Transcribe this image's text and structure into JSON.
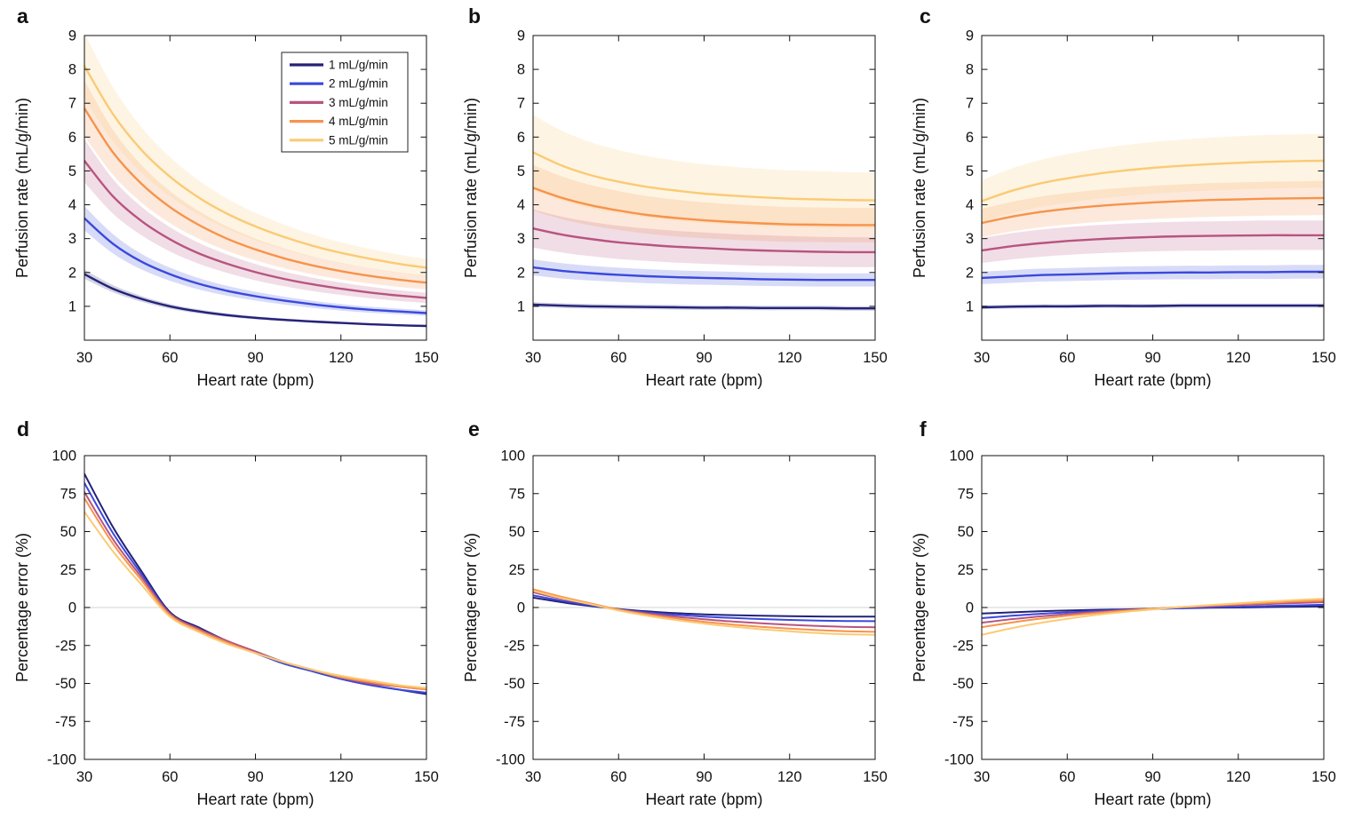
{
  "figure": {
    "background": "#ffffff",
    "xlabel": "Heart rate (bpm)",
    "ylabel_top_row": "Perfusion rate (mL/g/min)",
    "ylabel_bottom_row": "Percentage error (%)",
    "series_colors": [
      "#242278",
      "#3a49dd",
      "#b85480",
      "#f7934b",
      "#fbca74"
    ],
    "zero_line_color": "#e2e2e2",
    "axis_color": "#111111"
  },
  "chart_data": [
    {
      "id": "a",
      "panel_label": "a",
      "type": "line",
      "xlabel": "Heart rate (bpm)",
      "ylabel": "Perfusion rate (mL/g/min)",
      "xlim": [
        30,
        150
      ],
      "ylim": [
        0,
        9
      ],
      "xticks": [
        30,
        60,
        90,
        120,
        150
      ],
      "yticks": [
        1,
        2,
        3,
        4,
        5,
        6,
        7,
        8,
        9
      ],
      "grid": false,
      "zero_line": false,
      "legend": {
        "visible": true,
        "position": "northeast",
        "labels": [
          "1 mL/g/min",
          "2 mL/g/min",
          "3 mL/g/min",
          "4 mL/g/min",
          "5 mL/g/min"
        ]
      },
      "x": [
        30,
        40,
        50,
        60,
        70,
        80,
        90,
        100,
        110,
        120,
        130,
        140,
        150
      ],
      "series": [
        {
          "name": "1 mL/g/min",
          "color": "#242278",
          "band_frac": 0.07,
          "values": [
            1.95,
            1.52,
            1.22,
            1.0,
            0.85,
            0.74,
            0.66,
            0.6,
            0.55,
            0.51,
            0.47,
            0.44,
            0.42
          ]
        },
        {
          "name": "2 mL/g/min",
          "color": "#3a49dd",
          "band_frac": 0.1,
          "values": [
            3.6,
            2.85,
            2.32,
            1.95,
            1.67,
            1.46,
            1.3,
            1.17,
            1.06,
            0.97,
            0.9,
            0.85,
            0.8
          ]
        },
        {
          "name": "3 mL/g/min",
          "color": "#b85480",
          "band_frac": 0.12,
          "values": [
            5.3,
            4.25,
            3.52,
            2.98,
            2.57,
            2.26,
            2.01,
            1.81,
            1.65,
            1.52,
            1.41,
            1.32,
            1.25
          ]
        },
        {
          "name": "4 mL/g/min",
          "color": "#f7934b",
          "band_frac": 0.12,
          "values": [
            6.85,
            5.55,
            4.62,
            3.93,
            3.41,
            3.0,
            2.68,
            2.42,
            2.21,
            2.04,
            1.9,
            1.79,
            1.7
          ]
        },
        {
          "name": "5 mL/g/min",
          "color": "#fbca74",
          "band_frac": 0.12,
          "values": [
            8.1,
            6.68,
            5.62,
            4.83,
            4.22,
            3.74,
            3.36,
            3.05,
            2.79,
            2.58,
            2.41,
            2.26,
            2.14
          ]
        }
      ]
    },
    {
      "id": "b",
      "panel_label": "b",
      "type": "line",
      "xlabel": "Heart rate (bpm)",
      "ylabel": "Perfusion rate (mL/g/min)",
      "xlim": [
        30,
        150
      ],
      "ylim": [
        0,
        9
      ],
      "xticks": [
        30,
        60,
        90,
        120,
        150
      ],
      "yticks": [
        1,
        2,
        3,
        4,
        5,
        6,
        7,
        8,
        9
      ],
      "grid": false,
      "zero_line": false,
      "legend": {
        "visible": false
      },
      "x": [
        30,
        40,
        50,
        60,
        70,
        80,
        90,
        100,
        110,
        120,
        130,
        140,
        150
      ],
      "series": [
        {
          "name": "1 mL/g/min",
          "color": "#242278",
          "band_frac": 0.07,
          "values": [
            1.05,
            1.02,
            1.0,
            0.99,
            0.98,
            0.97,
            0.96,
            0.96,
            0.95,
            0.95,
            0.95,
            0.94,
            0.94
          ]
        },
        {
          "name": "2 mL/g/min",
          "color": "#3a49dd",
          "band_frac": 0.11,
          "values": [
            2.15,
            2.05,
            1.98,
            1.93,
            1.89,
            1.86,
            1.84,
            1.82,
            1.8,
            1.79,
            1.78,
            1.78,
            1.78
          ]
        },
        {
          "name": "3 mL/g/min",
          "color": "#b85480",
          "band_frac": 0.17,
          "values": [
            3.3,
            3.12,
            2.99,
            2.89,
            2.82,
            2.76,
            2.72,
            2.68,
            2.65,
            2.63,
            2.61,
            2.6,
            2.6
          ]
        },
        {
          "name": "4 mL/g/min",
          "color": "#f7934b",
          "band_frac": 0.15,
          "values": [
            4.5,
            4.21,
            3.99,
            3.83,
            3.7,
            3.61,
            3.54,
            3.49,
            3.45,
            3.42,
            3.41,
            3.4,
            3.4
          ]
        },
        {
          "name": "5 mL/g/min",
          "color": "#fbca74",
          "band_frac": 0.2,
          "values": [
            5.55,
            5.16,
            4.88,
            4.68,
            4.53,
            4.42,
            4.33,
            4.27,
            4.22,
            4.18,
            4.16,
            4.14,
            4.13
          ]
        }
      ]
    },
    {
      "id": "c",
      "panel_label": "c",
      "type": "line",
      "xlabel": "Heart rate (bpm)",
      "ylabel": "Perfusion rate (mL/g/min)",
      "xlim": [
        30,
        150
      ],
      "ylim": [
        0,
        9
      ],
      "xticks": [
        30,
        60,
        90,
        120,
        150
      ],
      "yticks": [
        1,
        2,
        3,
        4,
        5,
        6,
        7,
        8,
        9
      ],
      "grid": false,
      "zero_line": false,
      "legend": {
        "visible": false
      },
      "x": [
        30,
        40,
        50,
        60,
        70,
        80,
        90,
        100,
        110,
        120,
        130,
        140,
        150
      ],
      "series": [
        {
          "name": "1 mL/g/min",
          "color": "#242278",
          "band_frac": 0.06,
          "values": [
            0.97,
            0.99,
            1.0,
            1.0,
            1.01,
            1.01,
            1.01,
            1.02,
            1.02,
            1.02,
            1.02,
            1.02,
            1.02
          ]
        },
        {
          "name": "2 mL/g/min",
          "color": "#3a49dd",
          "band_frac": 0.1,
          "values": [
            1.84,
            1.88,
            1.92,
            1.94,
            1.96,
            1.98,
            1.99,
            2.0,
            2.0,
            2.01,
            2.01,
            2.02,
            2.02
          ]
        },
        {
          "name": "3 mL/g/min",
          "color": "#b85480",
          "band_frac": 0.14,
          "values": [
            2.65,
            2.77,
            2.86,
            2.93,
            2.98,
            3.02,
            3.05,
            3.07,
            3.08,
            3.09,
            3.1,
            3.1,
            3.1
          ]
        },
        {
          "name": "4 mL/g/min",
          "color": "#f7934b",
          "band_frac": 0.12,
          "values": [
            3.46,
            3.64,
            3.78,
            3.88,
            3.96,
            4.02,
            4.07,
            4.11,
            4.14,
            4.16,
            4.18,
            4.19,
            4.2
          ]
        },
        {
          "name": "5 mL/g/min",
          "color": "#fbca74",
          "band_frac": 0.15,
          "values": [
            4.11,
            4.4,
            4.62,
            4.78,
            4.91,
            5.01,
            5.09,
            5.15,
            5.2,
            5.24,
            5.27,
            5.29,
            5.3
          ]
        }
      ]
    },
    {
      "id": "d",
      "panel_label": "d",
      "type": "line",
      "xlabel": "Heart rate (bpm)",
      "ylabel": "Percentage error (%)",
      "xlim": [
        30,
        150
      ],
      "ylim": [
        -100,
        100
      ],
      "xticks": [
        30,
        60,
        90,
        120,
        150
      ],
      "yticks": [
        -100,
        -75,
        -50,
        -25,
        0,
        25,
        50,
        75,
        100
      ],
      "grid": false,
      "zero_line": true,
      "legend": {
        "visible": false
      },
      "x": [
        30,
        40,
        50,
        60,
        70,
        80,
        90,
        100,
        110,
        120,
        130,
        140,
        150
      ],
      "series": [
        {
          "name": "1 mL/g/min",
          "color": "#242278",
          "values": [
            88,
            53,
            24,
            -3,
            -13,
            -22,
            -29,
            -36,
            -42,
            -47,
            -51,
            -54,
            -57
          ]
        },
        {
          "name": "2 mL/g/min",
          "color": "#3a49dd",
          "values": [
            82,
            49,
            22,
            -4,
            -14,
            -23,
            -30,
            -37,
            -42,
            -47,
            -51,
            -54,
            -56
          ]
        },
        {
          "name": "3 mL/g/min",
          "color": "#b85480",
          "values": [
            76,
            45,
            20,
            -4,
            -14,
            -22,
            -29,
            -36,
            -41,
            -46,
            -50,
            -52,
            -54
          ]
        },
        {
          "name": "4 mL/g/min",
          "color": "#f7934b",
          "values": [
            72,
            42,
            18,
            -5,
            -15,
            -23,
            -30,
            -36,
            -41,
            -46,
            -49,
            -52,
            -54
          ]
        },
        {
          "name": "5 mL/g/min",
          "color": "#fbca74",
          "values": [
            63,
            37,
            15,
            -6,
            -16,
            -24,
            -30,
            -36,
            -41,
            -45,
            -48,
            -51,
            -53
          ]
        }
      ]
    },
    {
      "id": "e",
      "panel_label": "e",
      "type": "line",
      "xlabel": "Heart rate (bpm)",
      "ylabel": "Percentage error (%)",
      "xlim": [
        30,
        150
      ],
      "ylim": [
        -100,
        100
      ],
      "xticks": [
        30,
        60,
        90,
        120,
        150
      ],
      "yticks": [
        -100,
        -75,
        -50,
        -25,
        0,
        25,
        50,
        75,
        100
      ],
      "grid": false,
      "zero_line": true,
      "legend": {
        "visible": false
      },
      "x": [
        30,
        40,
        50,
        60,
        70,
        80,
        90,
        100,
        110,
        120,
        130,
        140,
        150
      ],
      "series": [
        {
          "name": "1 mL/g/min",
          "color": "#242278",
          "values": [
            6.5,
            3.5,
            1,
            -1,
            -2.5,
            -3.7,
            -4.5,
            -5,
            -5.4,
            -5.7,
            -5.9,
            -6,
            -6
          ]
        },
        {
          "name": "2 mL/g/min",
          "color": "#3a49dd",
          "values": [
            8,
            4.5,
            1.5,
            -1.2,
            -3.2,
            -4.8,
            -6,
            -6.9,
            -7.6,
            -8.2,
            -8.6,
            -8.9,
            -9
          ]
        },
        {
          "name": "3 mL/g/min",
          "color": "#b85480",
          "values": [
            10,
            5.8,
            2.2,
            -1.3,
            -3.9,
            -6,
            -7.7,
            -9.2,
            -10.4,
            -11.4,
            -12.1,
            -12.7,
            -13
          ]
        },
        {
          "name": "4 mL/g/min",
          "color": "#f7934b",
          "values": [
            12,
            7,
            2.8,
            -1.4,
            -4.6,
            -7.2,
            -9.4,
            -11.2,
            -12.7,
            -13.9,
            -14.9,
            -15.6,
            -16
          ]
        },
        {
          "name": "5 mL/g/min",
          "color": "#fbca74",
          "values": [
            11,
            6.2,
            2.2,
            -2,
            -5.4,
            -8.2,
            -10.6,
            -12.6,
            -14.3,
            -15.7,
            -16.8,
            -17.6,
            -18
          ]
        }
      ]
    },
    {
      "id": "f",
      "panel_label": "f",
      "type": "line",
      "xlabel": "Heart rate (bpm)",
      "ylabel": "Percentage error (%)",
      "xlim": [
        30,
        150
      ],
      "ylim": [
        -100,
        100
      ],
      "xticks": [
        30,
        60,
        90,
        120,
        150
      ],
      "yticks": [
        -100,
        -75,
        -50,
        -25,
        0,
        25,
        50,
        75,
        100
      ],
      "grid": false,
      "zero_line": true,
      "legend": {
        "visible": false
      },
      "x": [
        30,
        40,
        50,
        60,
        70,
        80,
        90,
        100,
        110,
        120,
        130,
        140,
        150
      ],
      "series": [
        {
          "name": "1 mL/g/min",
          "color": "#242278",
          "values": [
            -4,
            -3.2,
            -2.5,
            -2,
            -1.5,
            -1.2,
            -0.8,
            -0.5,
            -0.2,
            0,
            0.3,
            0.5,
            0.7
          ]
        },
        {
          "name": "2 mL/g/min",
          "color": "#3a49dd",
          "values": [
            -7,
            -5.5,
            -4.2,
            -3.2,
            -2.3,
            -1.6,
            -1,
            -0.4,
            0.1,
            0.5,
            1,
            1.4,
            1.8
          ]
        },
        {
          "name": "3 mL/g/min",
          "color": "#b85480",
          "values": [
            -10,
            -7.8,
            -5.9,
            -4.3,
            -3,
            -1.8,
            -0.8,
            0.1,
            0.9,
            1.6,
            2.3,
            2.9,
            3.5
          ]
        },
        {
          "name": "4 mL/g/min",
          "color": "#f7934b",
          "values": [
            -13,
            -10,
            -7.5,
            -5.4,
            -3.6,
            -2.1,
            -0.8,
            0.3,
            1.3,
            2.2,
            3.1,
            3.9,
            4.6
          ]
        },
        {
          "name": "5 mL/g/min",
          "color": "#fbca74",
          "values": [
            -18,
            -13.8,
            -10.3,
            -7.4,
            -4.9,
            -2.9,
            -1.2,
            0.3,
            1.6,
            2.8,
            3.9,
            4.9,
            5.8
          ]
        }
      ]
    }
  ]
}
